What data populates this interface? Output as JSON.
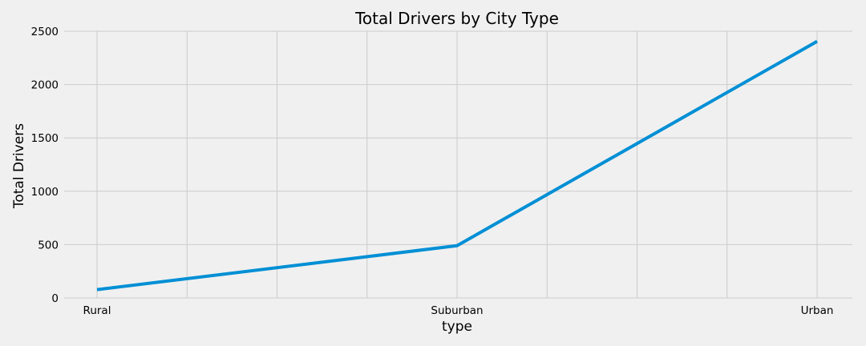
{
  "chart_data": {
    "type": "line",
    "title": "Total Drivers by City Type",
    "xlabel": "type",
    "ylabel": "Total Drivers",
    "categories": [
      "Rural",
      "Suburban",
      "Urban"
    ],
    "series": [
      {
        "values": [
          78,
          490,
          2405
        ],
        "color": "#008fd5"
      }
    ],
    "ylim": [
      0,
      2500
    ],
    "yticks": [
      0,
      500,
      1000,
      1500,
      2000,
      2500
    ],
    "grid": true,
    "background": "#f0f0f0",
    "grid_color": "#cbcbcb"
  }
}
